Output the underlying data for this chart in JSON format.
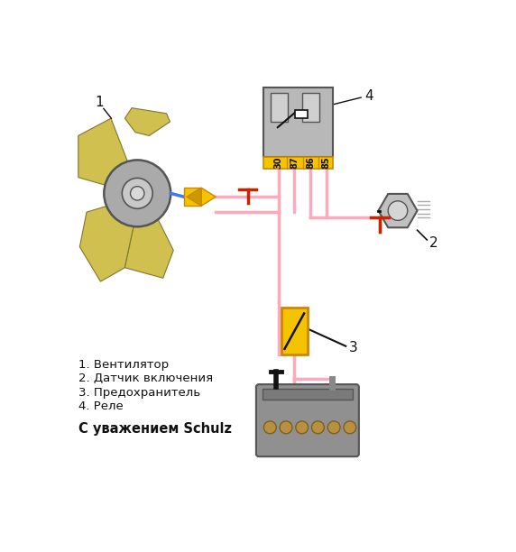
{
  "bg_color": "#ffffff",
  "legend_items": [
    "1. Вентилятор",
    "2. Датчик включения",
    "3. Предохранитель",
    "4. Реле"
  ],
  "signature": "С уважением Schulz",
  "relay_pins": [
    "30",
    "87",
    "86",
    "85"
  ],
  "pink": "#ffaabc",
  "yellow": "#f5c400",
  "relay_gray": "#b8b8b8",
  "dark_gray": "#555555",
  "ground_red": "#cc2200",
  "blade_yellow": "#cfc050",
  "motor_gray": "#aaaaaa",
  "battery_gray": "#909090",
  "black": "#111111",
  "blue": "#4477ee",
  "sensor_gray": "#999999",
  "white": "#ffffff"
}
